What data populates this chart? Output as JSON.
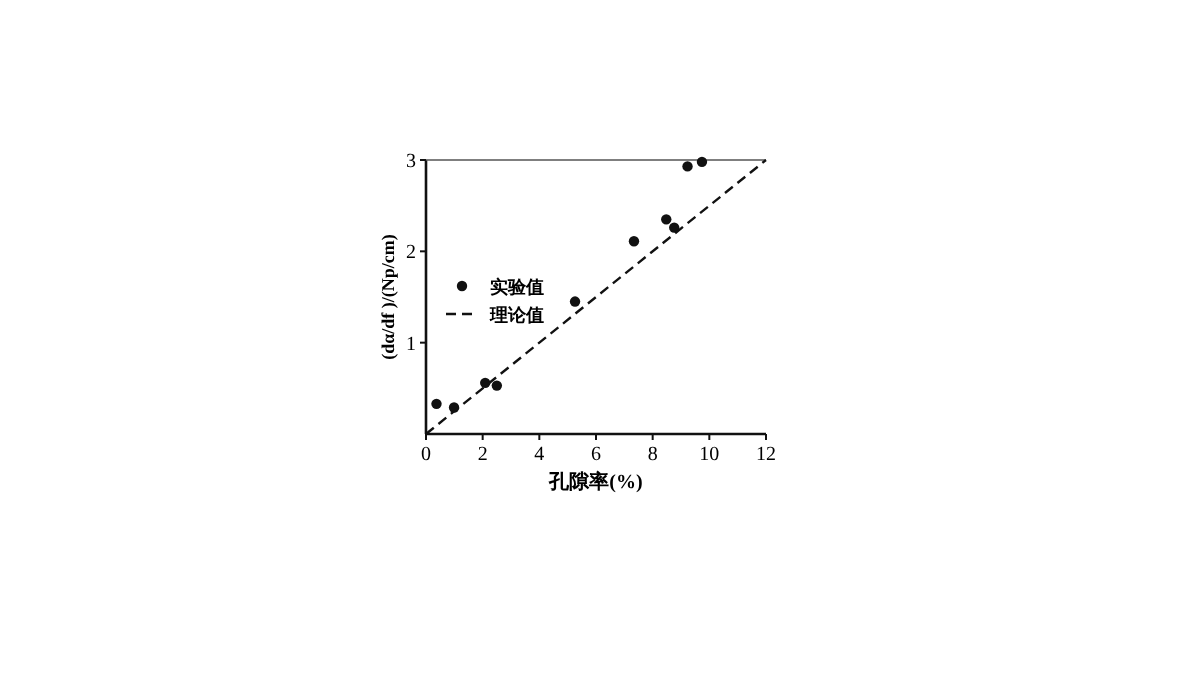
{
  "chart_data": {
    "type": "scatter",
    "xlabel": "孔隙率(%)",
    "ylabel": "(dα/df )/(Np/cm)",
    "xlim": [
      0,
      12
    ],
    "ylim": [
      0,
      3
    ],
    "xticks": [
      0,
      2,
      4,
      6,
      8,
      10,
      12
    ],
    "yticks": [
      1,
      2,
      3
    ],
    "grid": false,
    "legend": "left",
    "series": [
      {
        "name": "实验值",
        "marker": "circle",
        "color": "#111111",
        "x": [
          0.37,
          0.99,
          2.09,
          2.5,
          5.26,
          7.34,
          8.48,
          8.76,
          9.23,
          9.74
        ],
        "values": [
          0.33,
          0.29,
          0.56,
          0.53,
          1.45,
          2.11,
          2.35,
          2.26,
          2.93,
          2.98
        ]
      },
      {
        "name": "理论值",
        "type": "line",
        "line_style": "dashed",
        "marker": "none",
        "color": "#111111",
        "x": [
          0,
          12
        ],
        "values": [
          0,
          3
        ]
      }
    ]
  }
}
